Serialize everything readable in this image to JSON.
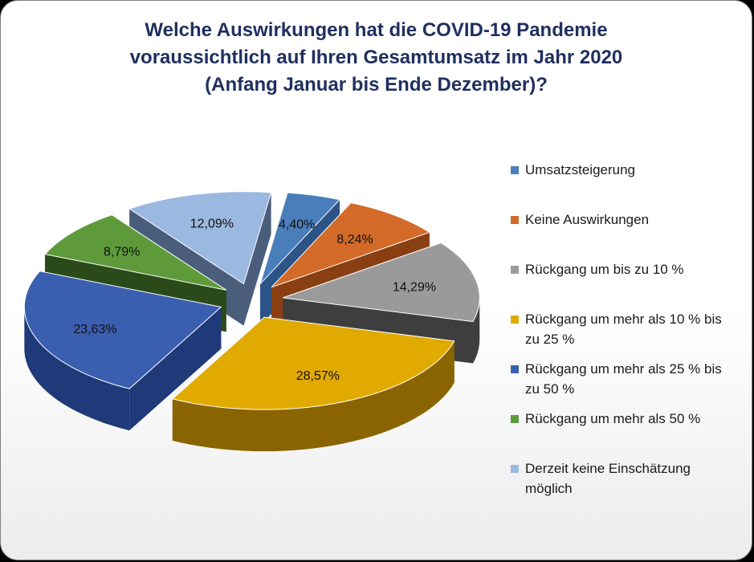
{
  "chart_data": {
    "type": "pie",
    "title_lines": [
      "Welche Auswirkungen hat die COVID-19 Pandemie",
      "voraussichtlich auf Ihren Gesamtumsatz im Jahr 2020",
      "(Anfang Januar bis Ende Dezember)?"
    ],
    "slices": [
      {
        "label_lines": [
          "Umsatzsteigerung"
        ],
        "value": 4.4,
        "display": "4,40%",
        "color": "#4a7ebb",
        "side": "#2d5486"
      },
      {
        "label_lines": [
          "Keine Auswirkungen"
        ],
        "value": 8.24,
        "display": "8,24%",
        "color": "#d46a28",
        "side": "#8a3f12"
      },
      {
        "label_lines": [
          "Rückgang um bis zu 10 %"
        ],
        "value": 14.29,
        "display": "14,29%",
        "color": "#9a9a9a",
        "side": "#3e3e3e"
      },
      {
        "label_lines": [
          "Rückgang um mehr als 10 % bis",
          "zu 25 %"
        ],
        "value": 28.57,
        "display": "28,57%",
        "color": "#e0aa00",
        "side": "#8a6400"
      },
      {
        "label_lines": [
          "Rückgang um mehr als 25 % bis",
          "zu 50 %"
        ],
        "value": 23.63,
        "display": "23,63%",
        "color": "#3a5fb0",
        "side": "#1f3a78"
      },
      {
        "label_lines": [
          "Rückgang um mehr als 50 %"
        ],
        "value": 8.79,
        "display": "8,79%",
        "color": "#5e9a3a",
        "side": "#2a4a1a"
      },
      {
        "label_lines": [
          "Derzeit keine Einschätzung",
          "möglich"
        ],
        "value": 12.09,
        "display": "12,09%",
        "color": "#9bb8e0",
        "side": "#4a5e7c"
      }
    ],
    "legend_position": "right",
    "exploded": true,
    "three_d": true
  }
}
